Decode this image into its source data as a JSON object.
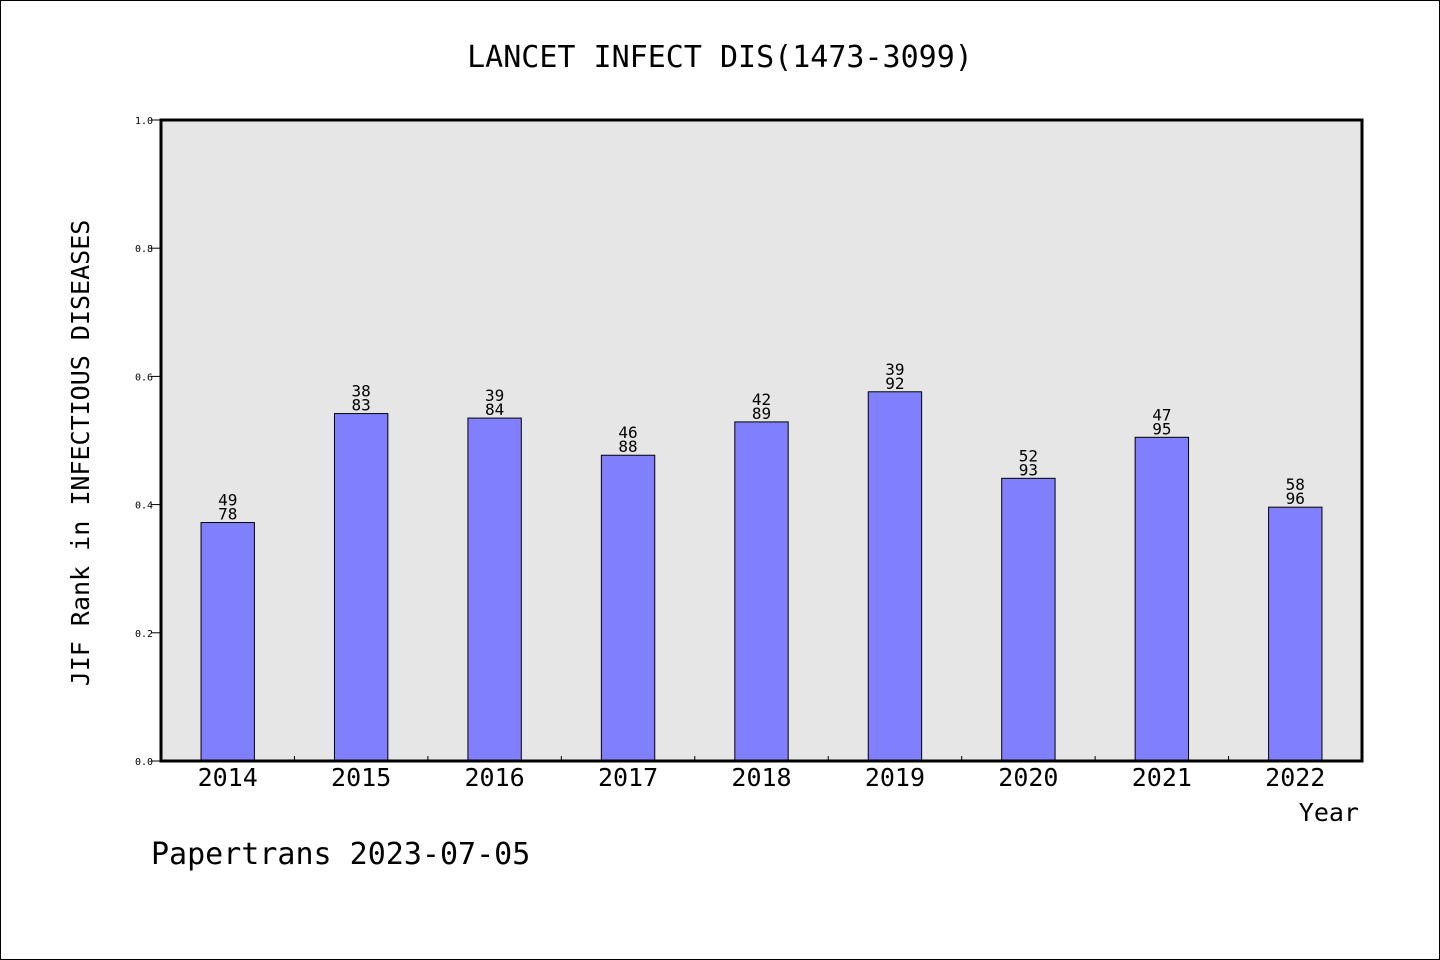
{
  "chart_data": {
    "type": "bar",
    "title": "LANCET INFECT DIS(1473-3099)",
    "xlabel": "Year",
    "ylabel": "JIF Rank in INFECTIOUS DISEASES",
    "ylim": [
      0.0,
      1.0
    ],
    "yticks": [
      "0.0",
      "0.2",
      "0.4",
      "0.6",
      "0.8",
      "1.0"
    ],
    "categories": [
      "2014",
      "2015",
      "2016",
      "2017",
      "2018",
      "2019",
      "2020",
      "2021",
      "2022"
    ],
    "values": [
      0.372,
      0.542,
      0.535,
      0.477,
      0.529,
      0.576,
      0.441,
      0.505,
      0.396
    ],
    "rank": [
      "49",
      "38",
      "39",
      "46",
      "42",
      "39",
      "52",
      "47",
      "58"
    ],
    "total": [
      "78",
      "83",
      "84",
      "88",
      "89",
      "92",
      "93",
      "95",
      "96"
    ],
    "grid": false,
    "colors": {
      "bar": "#8080ff",
      "plot_bg": "#e6e6e6"
    }
  },
  "footer": "Papertrans 2023-07-05"
}
